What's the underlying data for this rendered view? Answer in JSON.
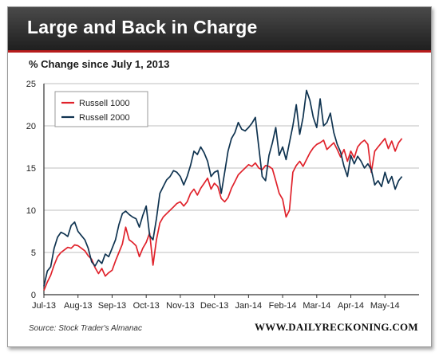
{
  "title": "Large and Back in Charge",
  "subtitle": "% Change since July 1, 2013",
  "source": "Source: Stock Trader's Almanac",
  "brand": "WWW.DAILYRECKONING.COM",
  "colors": {
    "russell_1000": "#e0222b",
    "russell_2000": "#0f3350",
    "gridline": "#bfbfbf",
    "title_bar": "#2b2b2b",
    "accent_rule": "#b71c1c"
  },
  "chart_data": {
    "type": "line",
    "title": "% Change since July 1, 2013",
    "xlabel": "",
    "ylabel": "",
    "ylim": [
      0,
      25
    ],
    "yticks": [
      0,
      5,
      10,
      15,
      20,
      25
    ],
    "xlim": [
      0,
      11
    ],
    "xticks": [
      {
        "value": 0,
        "label": "Jul-13"
      },
      {
        "value": 1,
        "label": "Aug-13"
      },
      {
        "value": 2,
        "label": "Sep-13"
      },
      {
        "value": 3,
        "label": "Oct-13"
      },
      {
        "value": 4,
        "label": "Nov-13"
      },
      {
        "value": 5,
        "label": "Dec-13"
      },
      {
        "value": 6,
        "label": "Jan-14"
      },
      {
        "value": 7,
        "label": "Feb-14"
      },
      {
        "value": 8,
        "label": "Mar-14"
      },
      {
        "value": 9,
        "label": "Apr-14"
      },
      {
        "value": 10,
        "label": "May-14"
      }
    ],
    "grid": "horizontal",
    "legend_position": "top-left",
    "series": [
      {
        "name": "Russell 1000",
        "x": [
          0.0,
          0.1,
          0.2,
          0.3,
          0.4,
          0.5,
          0.6,
          0.7,
          0.8,
          0.9,
          1.0,
          1.1,
          1.2,
          1.3,
          1.4,
          1.5,
          1.6,
          1.7,
          1.8,
          1.9,
          2.0,
          2.1,
          2.2,
          2.3,
          2.4,
          2.5,
          2.6,
          2.7,
          2.8,
          2.9,
          3.0,
          3.1,
          3.2,
          3.3,
          3.4,
          3.5,
          3.6,
          3.7,
          3.8,
          3.9,
          4.0,
          4.1,
          4.2,
          4.3,
          4.4,
          4.5,
          4.6,
          4.7,
          4.8,
          4.9,
          5.0,
          5.1,
          5.2,
          5.3,
          5.4,
          5.5,
          5.6,
          5.7,
          5.8,
          5.9,
          6.0,
          6.1,
          6.2,
          6.3,
          6.4,
          6.5,
          6.6,
          6.7,
          6.8,
          6.9,
          7.0,
          7.1,
          7.2,
          7.3,
          7.4,
          7.5,
          7.6,
          7.7,
          7.8,
          7.9,
          8.0,
          8.1,
          8.2,
          8.3,
          8.4,
          8.5,
          8.6,
          8.7,
          8.8,
          8.9,
          9.0,
          9.1,
          9.2,
          9.3,
          9.4,
          9.5,
          9.6,
          9.7,
          9.8,
          9.9,
          10.0,
          10.1,
          10.2,
          10.3,
          10.4,
          10.5
        ],
        "values": [
          0.5,
          1.5,
          2.3,
          3.5,
          4.5,
          5.0,
          5.3,
          5.6,
          5.5,
          5.9,
          5.8,
          5.5,
          5.2,
          4.6,
          4.2,
          3.2,
          2.5,
          3.1,
          2.2,
          2.6,
          2.9,
          4.0,
          5.0,
          6.0,
          8.0,
          6.5,
          6.2,
          5.8,
          4.5,
          5.5,
          6.2,
          7.3,
          3.5,
          6.5,
          8.5,
          9.2,
          9.6,
          10.0,
          10.4,
          10.8,
          11.0,
          10.5,
          11.0,
          12.0,
          12.5,
          11.8,
          12.6,
          13.2,
          13.8,
          12.5,
          13.2,
          12.8,
          11.4,
          11.0,
          11.5,
          12.6,
          13.4,
          14.2,
          14.6,
          15.0,
          15.4,
          15.2,
          15.6,
          15.0,
          14.8,
          15.3,
          15.2,
          14.9,
          13.5,
          12.0,
          11.3,
          9.2,
          10.0,
          14.5,
          15.3,
          15.8,
          15.2,
          16.0,
          16.8,
          17.4,
          17.8,
          18.0,
          18.3,
          17.2,
          17.6,
          18.0,
          17.2,
          16.3,
          17.2,
          15.8,
          17.0,
          16.2,
          17.5,
          18.0,
          18.3,
          17.8,
          14.5,
          17.0,
          17.5,
          18.0,
          18.5,
          17.3,
          18.2,
          17.0,
          18.0,
          18.5
        ]
      },
      {
        "name": "Russell 2000",
        "x": [
          0.0,
          0.1,
          0.2,
          0.3,
          0.4,
          0.5,
          0.6,
          0.7,
          0.8,
          0.9,
          1.0,
          1.1,
          1.2,
          1.3,
          1.4,
          1.5,
          1.6,
          1.7,
          1.8,
          1.9,
          2.0,
          2.1,
          2.2,
          2.3,
          2.4,
          2.5,
          2.6,
          2.7,
          2.8,
          2.9,
          3.0,
          3.1,
          3.2,
          3.3,
          3.4,
          3.5,
          3.6,
          3.7,
          3.8,
          3.9,
          4.0,
          4.1,
          4.2,
          4.3,
          4.4,
          4.5,
          4.6,
          4.7,
          4.8,
          4.9,
          5.0,
          5.1,
          5.2,
          5.3,
          5.4,
          5.5,
          5.6,
          5.7,
          5.8,
          5.9,
          6.0,
          6.1,
          6.2,
          6.3,
          6.4,
          6.5,
          6.6,
          6.7,
          6.8,
          6.9,
          7.0,
          7.1,
          7.2,
          7.3,
          7.4,
          7.5,
          7.6,
          7.7,
          7.8,
          7.9,
          8.0,
          8.1,
          8.2,
          8.3,
          8.4,
          8.5,
          8.6,
          8.7,
          8.8,
          8.9,
          9.0,
          9.1,
          9.2,
          9.3,
          9.4,
          9.5,
          9.6,
          9.7,
          9.8,
          9.9,
          10.0,
          10.1,
          10.2,
          10.3,
          10.4,
          10.5
        ],
        "values": [
          1.0,
          2.8,
          3.3,
          5.5,
          6.8,
          7.4,
          7.2,
          6.9,
          8.2,
          8.6,
          7.5,
          7.0,
          6.5,
          5.5,
          3.9,
          3.4,
          4.1,
          3.7,
          4.8,
          4.5,
          5.5,
          6.5,
          8.3,
          9.6,
          9.9,
          9.5,
          9.2,
          9.0,
          8.0,
          9.4,
          10.5,
          7.0,
          6.5,
          9.0,
          12.0,
          12.8,
          13.6,
          14.0,
          14.7,
          14.5,
          14.0,
          13.0,
          14.0,
          15.3,
          17.0,
          16.6,
          17.5,
          16.8,
          15.8,
          14.0,
          14.5,
          14.7,
          12.0,
          14.5,
          17.0,
          18.5,
          19.2,
          20.4,
          19.6,
          19.4,
          19.8,
          20.3,
          21.0,
          17.5,
          14.0,
          13.5,
          16.5,
          18.0,
          19.8,
          16.5,
          17.5,
          16.0,
          18.0,
          20.0,
          22.5,
          19.0,
          21.0,
          24.2,
          23.0,
          21.0,
          19.8,
          23.2,
          20.0,
          20.4,
          21.5,
          19.2,
          17.8,
          16.9,
          15.2,
          14.0,
          16.5,
          15.5,
          16.4,
          15.8,
          15.0,
          15.5,
          14.8,
          13.0,
          13.5,
          12.8,
          14.5,
          13.2,
          14.0,
          12.5,
          13.5,
          14.0
        ]
      }
    ]
  }
}
